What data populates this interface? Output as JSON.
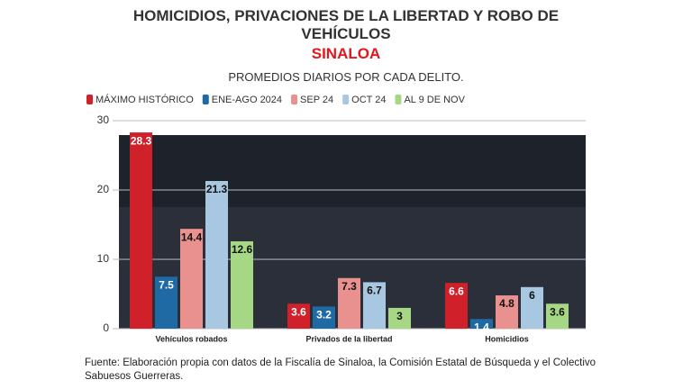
{
  "chart_data": {
    "type": "bar",
    "title": "HOMICIDIOS, PRIVACIONES DE LA LIBERTAD Y ROBO DE VEHÍCULOS",
    "region": "SINALOA",
    "subtitle": "PROMEDIOS DIARIOS POR CADA DELITO.",
    "categories": [
      "Vehículos robados",
      "Privados de la libertad",
      "Homicidios"
    ],
    "series": [
      {
        "name": "MÁXIMO HISTÓRICO",
        "color": "#d0202a",
        "values": [
          28.3,
          3.6,
          6.6
        ]
      },
      {
        "name": "ENE-AGO 2024",
        "color": "#1f6aa5",
        "values": [
          7.5,
          3.2,
          1.4
        ]
      },
      {
        "name": "SEP 24",
        "color": "#e8918f",
        "values": [
          14.4,
          7.3,
          4.8
        ]
      },
      {
        "name": "OCT 24",
        "color": "#a7c8e0",
        "values": [
          21.3,
          6.7,
          6
        ]
      },
      {
        "name": "AL 9 DE NOV",
        "color": "#a6d785",
        "values": [
          12.6,
          3,
          3.6
        ]
      }
    ],
    "ylim": [
      0,
      30
    ],
    "yticks": [
      0,
      10,
      20,
      30
    ],
    "grid": true,
    "source": "Fuente: Elaboración propia con datos de la Fiscalía de Sinaloa, la Comisión Estatal de Búsqueda y el Colectivo Sabuesos Guerreras."
  }
}
